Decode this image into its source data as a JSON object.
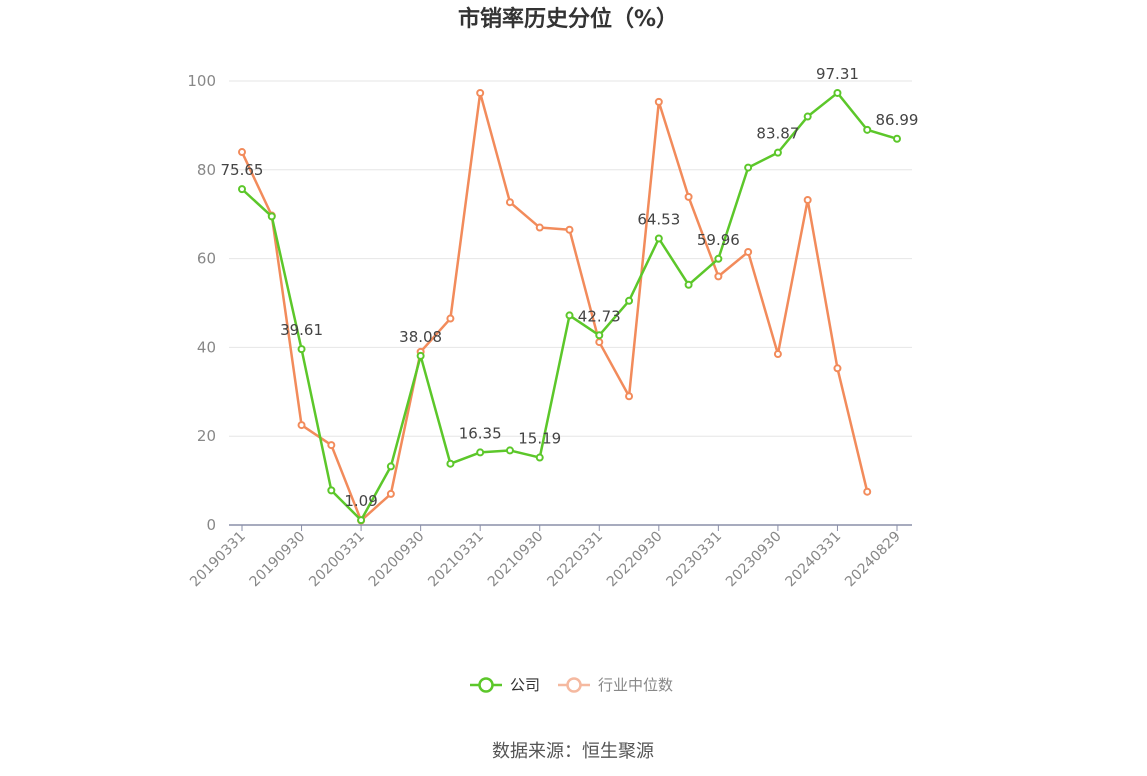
{
  "chart_data": {
    "type": "line",
    "title": "市销率历史分位（%）",
    "source": "数据来源：恒生聚源",
    "ylim": [
      0,
      100
    ],
    "yticks": [
      0,
      20,
      40,
      60,
      80,
      100
    ],
    "x_tick_labels": [
      "20190331",
      "20190930",
      "20200331",
      "20200930",
      "20210331",
      "20210930",
      "20220331",
      "20220930",
      "20230331",
      "20230930",
      "20240331",
      "20240829"
    ],
    "x": [
      "20190331",
      "20190630",
      "20190930",
      "20191231",
      "20200331",
      "20200630",
      "20200930",
      "20201231",
      "20210331",
      "20210630",
      "20210930",
      "20211231",
      "20220331",
      "20220630",
      "20220930",
      "20221231",
      "20230331",
      "20230630",
      "20230930",
      "20231231",
      "20240331",
      "20240630",
      "20240829"
    ],
    "series": [
      {
        "name": "公司",
        "color": "#5cc72a",
        "values": [
          75.65,
          69.5,
          39.61,
          7.8,
          1.09,
          13.2,
          38.08,
          13.8,
          16.35,
          16.8,
          15.19,
          47.2,
          42.73,
          50.5,
          64.53,
          54.1,
          59.96,
          80.5,
          83.87,
          92.0,
          97.31,
          89.0,
          86.99
        ],
        "labels": [
          "75.65",
          null,
          "39.61",
          null,
          "1.09",
          null,
          "38.08",
          null,
          "16.35",
          null,
          "15.19",
          null,
          "42.73",
          null,
          "64.53",
          null,
          "59.96",
          null,
          "83.87",
          null,
          "97.31",
          null,
          "86.99"
        ]
      },
      {
        "name": "行业中位数",
        "color": "#f28b5b",
        "values": [
          84.0,
          69.7,
          22.5,
          18.0,
          1.0,
          7.0,
          39.0,
          46.5,
          97.3,
          72.7,
          67.0,
          66.5,
          41.2,
          29.0,
          95.3,
          73.9,
          56.0,
          61.5,
          38.5,
          73.2,
          35.3,
          7.5,
          null
        ]
      }
    ],
    "legend": {
      "position": "bottom"
    },
    "grid": true
  }
}
